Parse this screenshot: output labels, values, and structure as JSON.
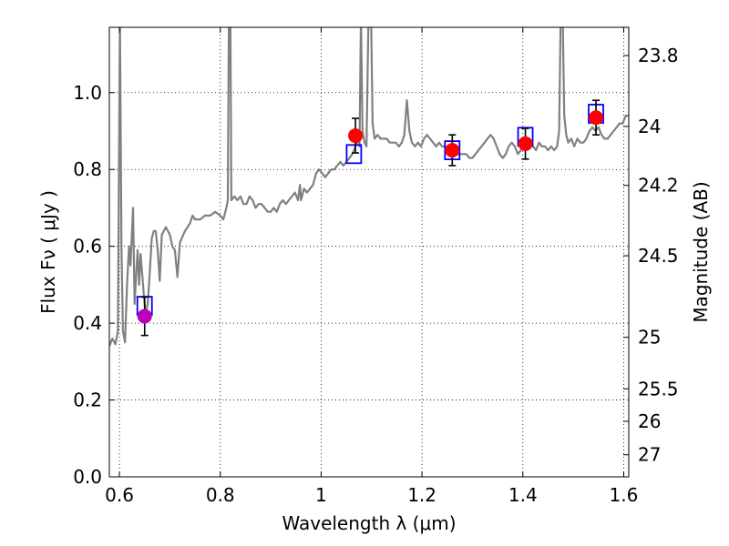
{
  "chart_data": {
    "type": "scatter",
    "title": "",
    "xlabel": "Wavelength  λ (μm)",
    "ylabel_left": "Flux  Fν  ( μJy )",
    "ylabel_right": "Magnitude (AB)",
    "xlim": [
      0.58,
      1.61
    ],
    "ylim": [
      0.0,
      1.17
    ],
    "grid": true,
    "x_ticks": [
      0.6,
      0.8,
      1.0,
      1.2,
      1.4,
      1.6
    ],
    "x_tick_labels": [
      "0.6",
      "0.8",
      "1",
      "1.2",
      "1.4",
      "1.6"
    ],
    "y_ticks": [
      0.0,
      0.2,
      0.4,
      0.6,
      0.8,
      1.0
    ],
    "y_tick_labels": [
      "0.0",
      "0.2",
      "0.4",
      "0.6",
      "0.8",
      "1.0"
    ],
    "mag_ticks": [
      {
        "flux": 1.0965,
        "label": "23.8"
      },
      {
        "flux": 0.912,
        "label": "24"
      },
      {
        "flux": 0.7586,
        "label": "24.2"
      },
      {
        "flux": 0.5754,
        "label": "24.5"
      },
      {
        "flux": 0.3631,
        "label": "25"
      },
      {
        "flux": 0.2291,
        "label": "25.5"
      },
      {
        "flux": 0.1445,
        "label": "26"
      },
      {
        "flux": 0.0575,
        "label": "27"
      }
    ],
    "series": [
      {
        "kind": "model_spectrum",
        "color": "#808080",
        "points": [
          [
            0.58,
            0.34
          ],
          [
            0.586,
            0.36
          ],
          [
            0.592,
            0.345
          ],
          [
            0.597,
            0.38
          ],
          [
            0.601,
            1.2
          ],
          [
            0.604,
            0.6
          ],
          [
            0.607,
            0.38
          ],
          [
            0.611,
            0.35
          ],
          [
            0.615,
            0.5
          ],
          [
            0.619,
            0.6
          ],
          [
            0.622,
            0.55
          ],
          [
            0.627,
            0.7
          ],
          [
            0.63,
            0.45
          ],
          [
            0.633,
            0.52
          ],
          [
            0.636,
            0.59
          ],
          [
            0.639,
            0.5
          ],
          [
            0.642,
            0.58
          ],
          [
            0.645,
            0.53
          ],
          [
            0.648,
            0.48
          ],
          [
            0.652,
            0.42
          ],
          [
            0.656,
            0.45
          ],
          [
            0.66,
            0.53
          ],
          [
            0.664,
            0.62
          ],
          [
            0.668,
            0.64
          ],
          [
            0.672,
            0.64
          ],
          [
            0.676,
            0.59
          ],
          [
            0.68,
            0.51
          ],
          [
            0.684,
            0.63
          ],
          [
            0.688,
            0.64
          ],
          [
            0.692,
            0.65
          ],
          [
            0.696,
            0.64
          ],
          [
            0.7,
            0.63
          ],
          [
            0.705,
            0.6
          ],
          [
            0.71,
            0.59
          ],
          [
            0.715,
            0.52
          ],
          [
            0.72,
            0.61
          ],
          [
            0.73,
            0.64
          ],
          [
            0.74,
            0.66
          ],
          [
            0.745,
            0.68
          ],
          [
            0.75,
            0.67
          ],
          [
            0.76,
            0.67
          ],
          [
            0.77,
            0.68
          ],
          [
            0.78,
            0.68
          ],
          [
            0.79,
            0.69
          ],
          [
            0.8,
            0.68
          ],
          [
            0.806,
            0.67
          ],
          [
            0.812,
            0.7
          ],
          [
            0.815,
            0.72
          ],
          [
            0.817,
            1.2
          ],
          [
            0.82,
            1.2
          ],
          [
            0.822,
            0.72
          ],
          [
            0.828,
            0.73
          ],
          [
            0.834,
            0.72
          ],
          [
            0.84,
            0.73
          ],
          [
            0.846,
            0.71
          ],
          [
            0.852,
            0.71
          ],
          [
            0.858,
            0.73
          ],
          [
            0.864,
            0.72
          ],
          [
            0.87,
            0.7
          ],
          [
            0.876,
            0.71
          ],
          [
            0.882,
            0.71
          ],
          [
            0.888,
            0.7
          ],
          [
            0.894,
            0.69
          ],
          [
            0.9,
            0.69
          ],
          [
            0.906,
            0.7
          ],
          [
            0.912,
            0.69
          ],
          [
            0.918,
            0.71
          ],
          [
            0.924,
            0.72
          ],
          [
            0.93,
            0.71
          ],
          [
            0.936,
            0.72
          ],
          [
            0.942,
            0.73
          ],
          [
            0.948,
            0.74
          ],
          [
            0.954,
            0.72
          ],
          [
            0.958,
            0.76
          ],
          [
            0.96,
            0.72
          ],
          [
            0.966,
            0.75
          ],
          [
            0.972,
            0.74
          ],
          [
            0.978,
            0.75
          ],
          [
            0.984,
            0.76
          ],
          [
            0.99,
            0.79
          ],
          [
            0.996,
            0.8
          ],
          [
            1.002,
            0.79
          ],
          [
            1.008,
            0.78
          ],
          [
            1.014,
            0.79
          ],
          [
            1.02,
            0.8
          ],
          [
            1.026,
            0.8
          ],
          [
            1.032,
            0.81
          ],
          [
            1.038,
            0.82
          ],
          [
            1.044,
            0.81
          ],
          [
            1.05,
            0.82
          ],
          [
            1.056,
            0.83
          ],
          [
            1.062,
            0.84
          ],
          [
            1.068,
            0.86
          ],
          [
            1.072,
            0.88
          ],
          [
            1.076,
            0.86
          ],
          [
            1.079,
            1.2
          ],
          [
            1.082,
            0.9
          ],
          [
            1.086,
            0.87
          ],
          [
            1.09,
            0.86
          ],
          [
            1.094,
            1.2
          ],
          [
            1.099,
            1.2
          ],
          [
            1.102,
            0.92
          ],
          [
            1.106,
            0.88
          ],
          [
            1.112,
            0.89
          ],
          [
            1.118,
            0.88
          ],
          [
            1.124,
            0.88
          ],
          [
            1.13,
            0.88
          ],
          [
            1.136,
            0.87
          ],
          [
            1.142,
            0.87
          ],
          [
            1.148,
            0.87
          ],
          [
            1.154,
            0.86
          ],
          [
            1.16,
            0.87
          ],
          [
            1.165,
            0.89
          ],
          [
            1.17,
            0.98
          ],
          [
            1.175,
            0.9
          ],
          [
            1.18,
            0.87
          ],
          [
            1.186,
            0.86
          ],
          [
            1.192,
            0.87
          ],
          [
            1.198,
            0.86
          ],
          [
            1.204,
            0.88
          ],
          [
            1.21,
            0.89
          ],
          [
            1.216,
            0.88
          ],
          [
            1.222,
            0.87
          ],
          [
            1.228,
            0.86
          ],
          [
            1.234,
            0.87
          ],
          [
            1.24,
            0.86
          ],
          [
            1.246,
            0.86
          ],
          [
            1.252,
            0.85
          ],
          [
            1.258,
            0.85
          ],
          [
            1.264,
            0.85
          ],
          [
            1.27,
            0.84
          ],
          [
            1.276,
            0.84
          ],
          [
            1.282,
            0.84
          ],
          [
            1.288,
            0.84
          ],
          [
            1.294,
            0.83
          ],
          [
            1.3,
            0.83
          ],
          [
            1.306,
            0.84
          ],
          [
            1.312,
            0.85
          ],
          [
            1.318,
            0.86
          ],
          [
            1.324,
            0.87
          ],
          [
            1.33,
            0.88
          ],
          [
            1.336,
            0.89
          ],
          [
            1.342,
            0.88
          ],
          [
            1.348,
            0.86
          ],
          [
            1.354,
            0.84
          ],
          [
            1.36,
            0.83
          ],
          [
            1.366,
            0.84
          ],
          [
            1.372,
            0.86
          ],
          [
            1.378,
            0.87
          ],
          [
            1.384,
            0.86
          ],
          [
            1.39,
            0.84
          ],
          [
            1.396,
            0.85
          ],
          [
            1.402,
            0.87
          ],
          [
            1.408,
            0.88
          ],
          [
            1.414,
            0.87
          ],
          [
            1.42,
            0.86
          ],
          [
            1.426,
            0.85
          ],
          [
            1.432,
            0.87
          ],
          [
            1.438,
            0.86
          ],
          [
            1.444,
            0.86
          ],
          [
            1.45,
            0.85
          ],
          [
            1.456,
            0.86
          ],
          [
            1.462,
            0.85
          ],
          [
            1.468,
            0.86
          ],
          [
            1.472,
            0.9
          ],
          [
            1.475,
            1.2
          ],
          [
            1.479,
            1.2
          ],
          [
            1.482,
            0.94
          ],
          [
            1.486,
            0.89
          ],
          [
            1.49,
            0.87
          ],
          [
            1.496,
            0.88
          ],
          [
            1.502,
            0.86
          ],
          [
            1.508,
            0.88
          ],
          [
            1.514,
            0.87
          ],
          [
            1.52,
            0.87
          ],
          [
            1.526,
            0.88
          ],
          [
            1.532,
            0.9
          ],
          [
            1.538,
            0.91
          ],
          [
            1.544,
            0.9
          ],
          [
            1.55,
            0.91
          ],
          [
            1.556,
            0.89
          ],
          [
            1.562,
            0.88
          ],
          [
            1.568,
            0.88
          ],
          [
            1.574,
            0.89
          ],
          [
            1.58,
            0.9
          ],
          [
            1.586,
            0.91
          ],
          [
            1.592,
            0.92
          ],
          [
            1.598,
            0.92
          ],
          [
            1.604,
            0.94
          ],
          [
            1.61,
            0.94
          ]
        ]
      },
      {
        "kind": "model_band_fluxes",
        "marker": "square",
        "color": "#0000ff",
        "points": [
          [
            0.65,
            0.445
          ],
          [
            1.065,
            0.84
          ],
          [
            1.26,
            0.85
          ],
          [
            1.405,
            0.885
          ],
          [
            1.545,
            0.945
          ]
        ]
      },
      {
        "kind": "observed",
        "marker": "circle",
        "color": "#ff0000",
        "points": [
          {
            "x": 1.068,
            "y": 0.888,
            "yerr": 0.045
          },
          {
            "x": 1.26,
            "y": 0.85,
            "yerr": 0.04
          },
          {
            "x": 1.405,
            "y": 0.867,
            "yerr": 0.04
          },
          {
            "x": 1.545,
            "y": 0.935,
            "yerr": 0.045
          }
        ]
      },
      {
        "kind": "observed",
        "marker": "circle",
        "color": "#bf00bf",
        "points": [
          {
            "x": 0.65,
            "y": 0.418,
            "yerr": 0.05
          }
        ]
      }
    ]
  }
}
